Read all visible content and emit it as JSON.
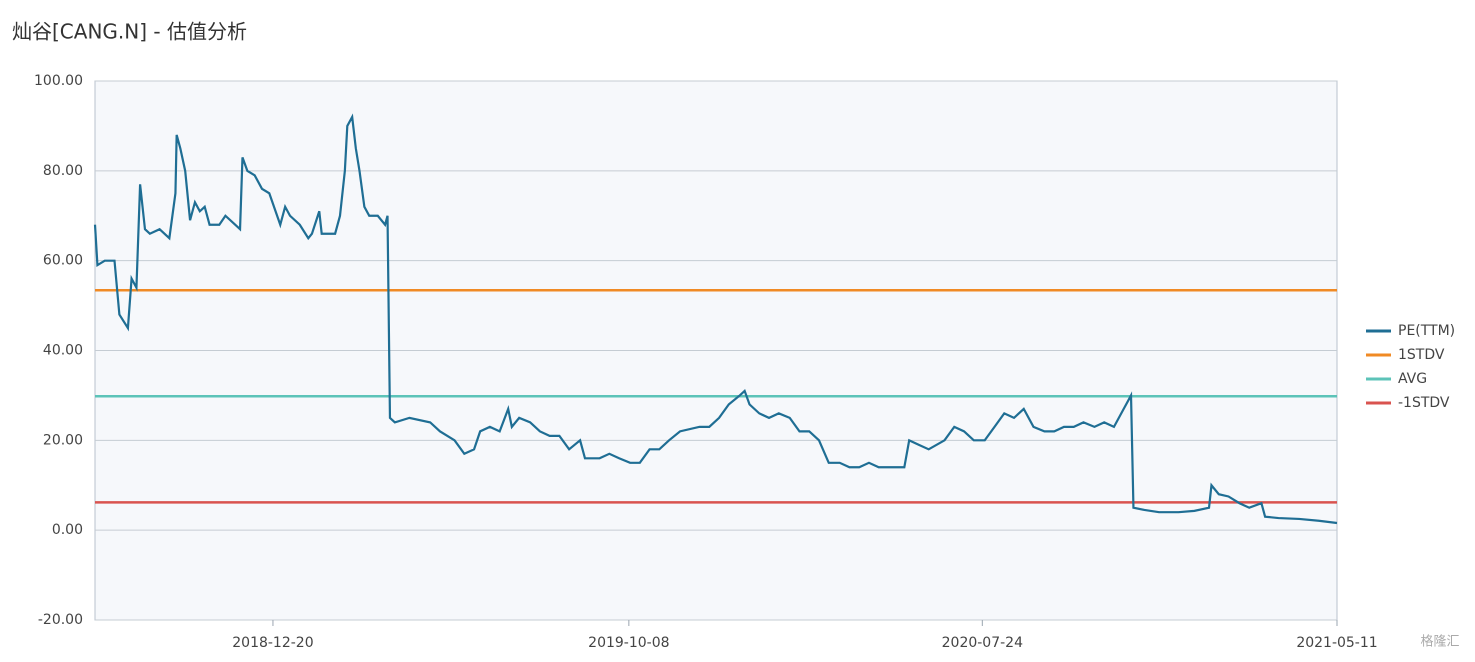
{
  "chart_data": {
    "type": "line",
    "title": "灿谷[CANG.N] - 估值分析",
    "watermark": "格隆汇",
    "xlim": [
      "2018-07-27",
      "2021-05-11"
    ],
    "xticks": [
      "2018-12-20",
      "2019-10-08",
      "2020-07-24",
      "2021-05-11"
    ],
    "ylim": [
      -20,
      100
    ],
    "yticks": [
      {
        "value": -20,
        "label": "-20.00"
      },
      {
        "value": 0,
        "label": "0.00"
      },
      {
        "value": 20,
        "label": "20.00"
      },
      {
        "value": 40,
        "label": "40.00"
      },
      {
        "value": 60,
        "label": "60.00"
      },
      {
        "value": 80,
        "label": "80.00"
      },
      {
        "value": 100,
        "label": "100.00"
      }
    ],
    "grid": true,
    "legend": "right",
    "series": [
      {
        "name": "PE(TTM)",
        "color": "#1f6e94",
        "x": [
          "2018-07-27",
          "2018-07-29",
          "2018-08-04",
          "2018-08-12",
          "2018-08-16",
          "2018-08-23",
          "2018-08-26",
          "2018-08-30",
          "2018-09-02",
          "2018-09-06",
          "2018-09-10",
          "2018-09-18",
          "2018-09-26",
          "2018-10-01",
          "2018-10-02",
          "2018-10-05",
          "2018-10-09",
          "2018-10-13",
          "2018-10-17",
          "2018-10-21",
          "2018-10-25",
          "2018-10-29",
          "2018-11-06",
          "2018-11-11",
          "2018-11-19",
          "2018-11-23",
          "2018-11-25",
          "2018-11-29",
          "2018-12-05",
          "2018-12-11",
          "2018-12-17",
          "2018-12-26",
          "2018-12-30",
          "2019-01-03",
          "2019-01-11",
          "2019-01-18",
          "2019-01-21",
          "2019-01-27",
          "2019-01-29",
          "2019-02-09",
          "2019-02-13",
          "2019-02-17",
          "2019-02-19",
          "2019-02-23",
          "2019-02-26",
          "2019-03-01",
          "2019-03-05",
          "2019-03-09",
          "2019-03-16",
          "2019-03-22",
          "2019-03-24",
          "2019-03-26",
          "2019-03-30",
          "2019-04-11",
          "2019-04-28",
          "2019-05-06",
          "2019-05-18",
          "2019-05-26",
          "2019-06-03",
          "2019-06-08",
          "2019-06-16",
          "2019-06-24",
          "2019-07-01",
          "2019-07-04",
          "2019-07-10",
          "2019-07-19",
          "2019-07-27",
          "2019-08-04",
          "2019-08-12",
          "2019-08-20",
          "2019-08-29",
          "2019-09-02",
          "2019-09-14",
          "2019-09-22",
          "2019-09-30",
          "2019-10-09",
          "2019-10-17",
          "2019-10-25",
          "2019-11-02",
          "2019-11-10",
          "2019-11-19",
          "2019-12-05",
          "2019-12-13",
          "2019-12-21",
          "2019-12-29",
          "2020-01-07",
          "2020-01-11",
          "2020-01-15",
          "2020-01-23",
          "2020-01-31",
          "2020-02-08",
          "2020-02-17",
          "2020-02-25",
          "2020-03-04",
          "2020-03-12",
          "2020-03-20",
          "2020-03-29",
          "2020-04-06",
          "2020-04-14",
          "2020-04-22",
          "2020-04-30",
          "2020-05-09",
          "2020-05-21",
          "2020-05-25",
          "2020-06-02",
          "2020-06-10",
          "2020-06-23",
          "2020-07-01",
          "2020-07-09",
          "2020-07-17",
          "2020-07-26",
          "2020-08-03",
          "2020-08-11",
          "2020-08-19",
          "2020-08-27",
          "2020-09-04",
          "2020-09-13",
          "2020-09-21",
          "2020-09-29",
          "2020-10-07",
          "2020-10-15",
          "2020-10-24",
          "2020-11-01",
          "2020-11-09",
          "2020-11-17",
          "2020-11-23",
          "2020-11-25",
          "2020-12-04",
          "2020-12-16",
          "2021-01-01",
          "2021-01-14",
          "2021-01-26",
          "2021-01-28",
          "2021-02-03",
          "2021-02-11",
          "2021-02-20",
          "2021-02-28",
          "2021-03-10",
          "2021-03-13",
          "2021-03-24",
          "2021-04-10",
          "2021-04-26",
          "2021-05-11"
        ],
        "values": [
          68,
          59,
          60,
          60,
          48,
          45,
          56,
          54,
          77,
          67,
          66,
          67,
          65,
          75,
          88,
          85,
          80,
          69,
          73,
          71,
          72,
          68,
          68,
          70,
          68,
          67,
          83,
          80,
          79,
          76,
          75,
          68,
          72,
          70,
          68,
          65,
          66,
          71,
          66,
          66,
          70,
          80,
          90,
          92,
          85,
          80,
          72,
          70,
          70,
          68,
          70,
          25,
          24,
          25,
          24,
          22,
          20,
          17,
          18,
          22,
          23,
          22,
          27,
          23,
          25,
          24,
          22,
          21,
          21,
          18,
          20,
          16,
          16,
          17,
          16,
          15,
          15,
          18,
          18,
          20,
          22,
          23,
          23,
          25,
          28,
          30,
          31,
          28,
          26,
          25,
          26,
          25,
          22,
          22,
          20,
          15,
          15,
          14,
          14,
          15,
          14,
          14,
          14,
          20,
          19,
          18,
          20,
          23,
          22,
          20,
          20,
          23,
          26,
          25,
          27,
          23,
          22,
          22,
          23,
          23,
          24,
          23,
          24,
          23,
          27,
          30,
          5,
          4.5,
          4,
          4,
          4.3,
          5,
          10,
          8,
          7.5,
          6,
          5,
          6,
          3,
          2.7,
          2.5,
          2.1,
          1.6
        ]
      },
      {
        "name": "1STDV",
        "color": "#f08a24",
        "x": [
          "2018-07-27",
          "2021-05-11"
        ],
        "values": [
          53.4,
          53.4
        ]
      },
      {
        "name": "AVG",
        "color": "#5cc3b8",
        "x": [
          "2018-07-27",
          "2021-05-11"
        ],
        "values": [
          29.8,
          29.8
        ]
      },
      {
        "name": "-1STDV",
        "color": "#d9534f",
        "x": [
          "2018-07-27",
          "2021-05-11"
        ],
        "values": [
          6.2,
          6.2
        ]
      }
    ]
  }
}
